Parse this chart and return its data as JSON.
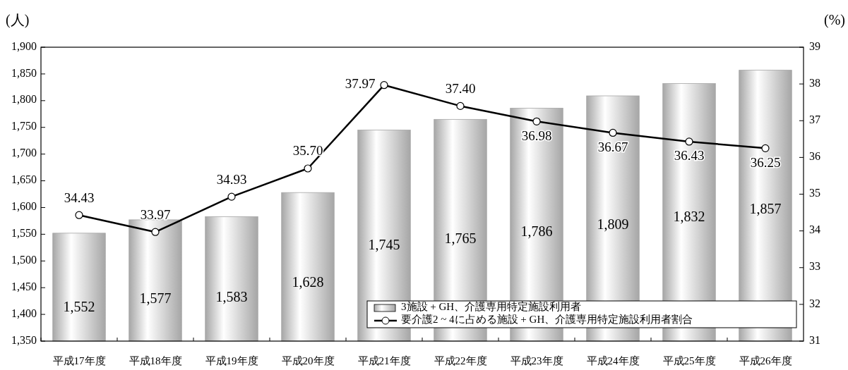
{
  "chart_data": {
    "type": "bar",
    "ylabel": "(人)",
    "y2label": "(%)",
    "categories": [
      "平成17年度",
      "平成18年度",
      "平成19年度",
      "平成20年度",
      "平成21年度",
      "平成22年度",
      "平成23年度",
      "平成24年度",
      "平成25年度",
      "平成26年度"
    ],
    "series": [
      {
        "name": "3施設 + GH、介護専用特定施設利用者",
        "color": "#a6a6a6",
        "values": [
          1552,
          1577,
          1583,
          1628,
          1745,
          1765,
          1786,
          1809,
          1832,
          1857
        ],
        "value_labels": [
          "1,552",
          "1,577",
          "1,583",
          "1,628",
          "1,745",
          "1,765",
          "1,786",
          "1,809",
          "1,832",
          "1,857"
        ]
      },
      {
        "name": "要介護2 ~ 4に占める施設 + GH、介護専用特定施設利用者割合",
        "type": "line",
        "axis": "y2",
        "color": "#000000",
        "marker": "circle",
        "values": [
          34.43,
          33.97,
          34.93,
          35.7,
          37.97,
          37.4,
          36.98,
          36.67,
          36.43,
          36.25
        ],
        "value_labels": [
          "34.43",
          "33.97",
          "34.93",
          "35.70",
          "37.97",
          "37.40",
          "36.98",
          "36.67",
          "36.43",
          "36.25"
        ]
      }
    ],
    "ylim": [
      1350,
      1900
    ],
    "yticks": [
      {
        "value": 1350,
        "label": "1,350"
      },
      {
        "value": 1400,
        "label": "1,400"
      },
      {
        "value": 1450,
        "label": "1,450"
      },
      {
        "value": 1500,
        "label": "1,500"
      },
      {
        "value": 1550,
        "label": "1,550"
      },
      {
        "value": 1600,
        "label": "1,600"
      },
      {
        "value": 1650,
        "label": "1,650"
      },
      {
        "value": 1700,
        "label": "1,700"
      },
      {
        "value": 1750,
        "label": "1,750"
      },
      {
        "value": 1800,
        "label": "1,800"
      },
      {
        "value": 1850,
        "label": "1,850"
      },
      {
        "value": 1900,
        "label": "1,900"
      }
    ],
    "y2lim": [
      31,
      39
    ],
    "y2ticks": [
      31,
      32,
      33,
      34,
      35,
      36,
      37,
      38,
      39
    ],
    "grid": false,
    "legend": "bottom right"
  }
}
